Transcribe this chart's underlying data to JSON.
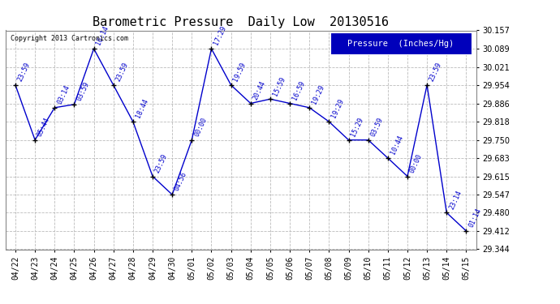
{
  "title": "Barometric Pressure  Daily Low  20130516",
  "copyright": "Copyright 2013 Cartronics.com",
  "legend_label": "Pressure  (Inches/Hg)",
  "background_color": "#ffffff",
  "plot_bg_color": "#ffffff",
  "grid_color": "#bbbbbb",
  "line_color": "#0000cc",
  "marker_color": "#000000",
  "text_color": "#0000cc",
  "x_labels": [
    "04/22",
    "04/23",
    "04/24",
    "04/25",
    "04/26",
    "04/27",
    "04/28",
    "04/29",
    "04/30",
    "05/01",
    "05/02",
    "05/03",
    "05/04",
    "05/05",
    "05/06",
    "05/07",
    "05/08",
    "05/09",
    "05/10",
    "05/11",
    "05/12",
    "05/13",
    "05/14",
    "05/15"
  ],
  "y_values": [
    29.954,
    29.75,
    29.87,
    29.882,
    30.089,
    29.954,
    29.818,
    29.615,
    29.547,
    29.75,
    30.089,
    29.954,
    29.886,
    29.902,
    29.886,
    29.87,
    29.818,
    29.75,
    29.75,
    29.683,
    29.615,
    29.954,
    29.48,
    29.412
  ],
  "time_labels": [
    "23:59",
    "05:44",
    "03:14",
    "03:59",
    "16:14",
    "23:59",
    "18:44",
    "23:59",
    "04:56",
    "00:00",
    "17:29",
    "19:59",
    "20:44",
    "15:59",
    "16:59",
    "19:29",
    "19:29",
    "15:29",
    "03:59",
    "10:44",
    "00:00",
    "23:59",
    "23:14",
    "01:14"
  ],
  "ylim_min": 29.344,
  "ylim_max": 30.157,
  "yticks": [
    29.344,
    29.412,
    29.48,
    29.547,
    29.615,
    29.683,
    29.75,
    29.818,
    29.886,
    29.954,
    30.021,
    30.089,
    30.157
  ],
  "title_fontsize": 11,
  "tick_fontsize": 7,
  "legend_fontsize": 7.5,
  "annot_fontsize": 6
}
